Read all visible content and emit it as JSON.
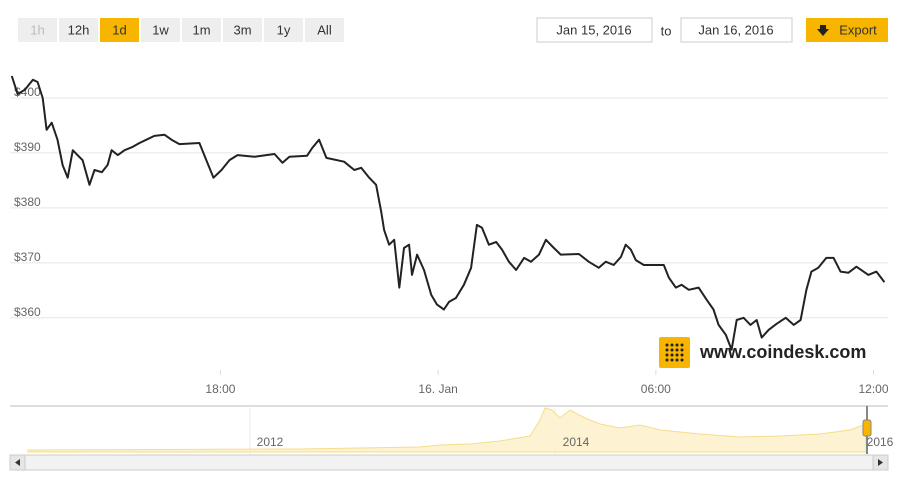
{
  "range_buttons": [
    "1h",
    "12h",
    "1d",
    "1w",
    "1m",
    "3m",
    "1y",
    "All"
  ],
  "active_button": "1d",
  "disabled_button": "1h",
  "date_from": "Jan 15, 2016",
  "to": "to",
  "date_to": "Jan 16, 2016",
  "export": "Export",
  "watermark": "www.coindesk.com",
  "navigator_labels": [
    "2012",
    "2014",
    "2016"
  ],
  "chart_data": {
    "type": "line",
    "color": "#222222",
    "grid": true,
    "xlim": [
      12.2,
      36.4
    ],
    "xticks": [
      {
        "value": 18,
        "label": "18:00"
      },
      {
        "value": 24,
        "label": "16. Jan"
      },
      {
        "value": 30,
        "label": "06:00"
      },
      {
        "value": 36,
        "label": "12:00"
      }
    ],
    "ylim": [
      350.5,
      406
    ],
    "yticks": [
      {
        "value": 360,
        "label": "$360"
      },
      {
        "value": 370,
        "label": "$370"
      },
      {
        "value": 380,
        "label": "$380"
      },
      {
        "value": 390,
        "label": "$390"
      },
      {
        "value": 400,
        "label": "$400"
      }
    ],
    "x": [
      12.25,
      12.41,
      12.61,
      12.83,
      12.96,
      13.1,
      13.21,
      13.35,
      13.51,
      13.65,
      13.79,
      13.93,
      14.06,
      14.2,
      14.39,
      14.53,
      14.73,
      14.89,
      15.0,
      15.17,
      15.36,
      15.58,
      15.77,
      15.96,
      16.18,
      16.46,
      16.65,
      16.87,
      17.42,
      17.61,
      17.81,
      18.03,
      18.25,
      18.47,
      18.94,
      19.49,
      19.71,
      19.9,
      20.39,
      20.53,
      20.72,
      20.92,
      21.41,
      21.69,
      21.88,
      22.1,
      22.29,
      22.43,
      22.51,
      22.65,
      22.79,
      22.93,
      23.06,
      23.2,
      23.28,
      23.42,
      23.61,
      23.81,
      23.97,
      24.16,
      24.3,
      24.49,
      24.71,
      24.91,
      25.07,
      25.21,
      25.4,
      25.6,
      25.76,
      25.95,
      26.15,
      26.37,
      26.56,
      26.78,
      26.97,
      27.19,
      27.38,
      27.88,
      28.15,
      28.43,
      28.62,
      28.84,
      29.04,
      29.17,
      29.31,
      29.45,
      29.67,
      30.22,
      30.36,
      30.55,
      30.71,
      30.91,
      31.18,
      31.4,
      31.59,
      31.73,
      31.93,
      32.09,
      32.23,
      32.42,
      32.61,
      32.78,
      32.92,
      33.11,
      33.33,
      33.58,
      33.8,
      33.99,
      34.15,
      34.29,
      34.48,
      34.7,
      34.9,
      35.09,
      35.31,
      35.53,
      35.86,
      36.08,
      36.3
    ],
    "values": [
      404.0,
      400.7,
      401.5,
      403.3,
      402.9,
      400.0,
      394.2,
      395.5,
      392.4,
      387.8,
      385.5,
      390.5,
      389.6,
      388.7,
      384.2,
      386.9,
      386.5,
      387.8,
      390.5,
      389.6,
      390.5,
      391.1,
      391.8,
      392.4,
      393.1,
      393.3,
      392.4,
      391.6,
      391.8,
      388.7,
      385.5,
      386.9,
      388.7,
      389.6,
      389.3,
      389.8,
      388.2,
      389.3,
      389.5,
      390.9,
      392.4,
      389.1,
      388.4,
      386.9,
      387.3,
      385.5,
      384.2,
      379.3,
      376.0,
      373.3,
      374.2,
      365.5,
      372.7,
      373.3,
      367.8,
      371.5,
      368.7,
      364.2,
      362.4,
      361.5,
      362.9,
      363.6,
      366.0,
      369.1,
      376.9,
      376.4,
      373.3,
      373.8,
      372.4,
      370.2,
      368.7,
      370.9,
      370.2,
      371.5,
      374.2,
      372.7,
      371.5,
      371.6,
      370.2,
      369.1,
      370.2,
      369.6,
      371.1,
      373.3,
      372.4,
      370.5,
      369.6,
      369.6,
      367.3,
      365.5,
      366.0,
      365.1,
      365.5,
      363.3,
      361.5,
      358.7,
      356.9,
      354.2,
      359.6,
      360.0,
      358.7,
      359.6,
      356.4,
      357.8,
      358.9,
      360.0,
      358.7,
      359.6,
      365.1,
      368.4,
      369.1,
      370.9,
      370.9,
      368.4,
      368.2,
      369.3,
      367.8,
      368.4,
      366.5
    ]
  }
}
